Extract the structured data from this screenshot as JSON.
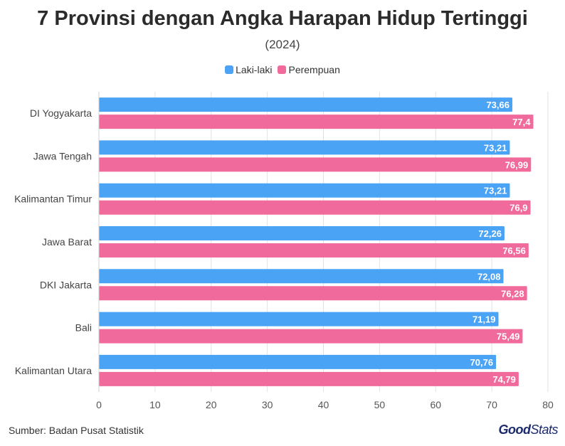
{
  "header": {
    "title": "7 Provinsi dengan Angka Harapan Hidup Tertinggi",
    "subtitle": "(2024)"
  },
  "footer": {
    "source": "Sumber: Badan Pusat Statistik",
    "brand_main": "Good",
    "brand_sub": "Stats"
  },
  "colors": {
    "laki": "#4aa3f5",
    "perempuan": "#f06b9c"
  },
  "chart_data": {
    "type": "bar",
    "orientation": "horizontal",
    "title": "7 Provinsi dengan Angka Harapan Hidup Tertinggi",
    "subtitle": "(2024)",
    "categories": [
      "DI Yogyakarta",
      "Jawa Tengah",
      "Kalimantan Timur",
      "Jawa Barat",
      "DKI Jakarta",
      "Bali",
      "Kalimantan Utara"
    ],
    "series": [
      {
        "name": "Laki-laki",
        "values": [
          73.66,
          73.21,
          73.21,
          72.26,
          72.08,
          71.19,
          70.76
        ],
        "labels": [
          "73,66",
          "73,21",
          "73,21",
          "72,26",
          "72,08",
          "71,19",
          "70,76"
        ]
      },
      {
        "name": "Perempuan",
        "values": [
          77.4,
          76.99,
          76.9,
          76.56,
          76.28,
          75.49,
          74.79
        ],
        "labels": [
          "77,4",
          "76,99",
          "76,9",
          "76,56",
          "76,28",
          "75,49",
          "74,79"
        ]
      }
    ],
    "xlim": [
      0,
      80
    ],
    "xticks": [
      "0",
      "10",
      "20",
      "30",
      "40",
      "50",
      "60",
      "70",
      "80"
    ],
    "grid": true,
    "legend": "top-center"
  }
}
